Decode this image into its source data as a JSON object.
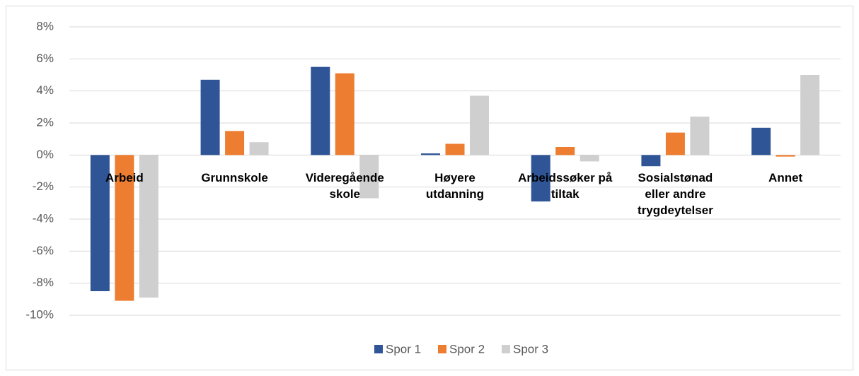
{
  "chart_data": {
    "type": "bar",
    "categories": [
      "Arbeid",
      "Grunnskole",
      "Videregående skole",
      "Høyere utdanning",
      "Arbeidssøker på tiltak",
      "Sosialstønad eller andre trygdeytelser",
      "Annet"
    ],
    "series": [
      {
        "name": "Spor 1",
        "color": "#2f5597",
        "values": [
          -8.5,
          4.7,
          5.5,
          0.1,
          -2.9,
          -0.7,
          1.7
        ]
      },
      {
        "name": "Spor 2",
        "color": "#ed7d31",
        "values": [
          -9.1,
          1.5,
          5.1,
          0.7,
          0.5,
          1.4,
          -0.1
        ]
      },
      {
        "name": "Spor 3",
        "color": "#cfcfcf",
        "values": [
          -8.9,
          0.8,
          -2.7,
          3.7,
          -0.4,
          2.4,
          5.0
        ]
      }
    ],
    "ylim": [
      -10,
      8
    ],
    "yticks": [
      {
        "value": -10,
        "label": "-10%"
      },
      {
        "value": -8,
        "label": "-8%"
      },
      {
        "value": -6,
        "label": "-6%"
      },
      {
        "value": -4,
        "label": "-4%"
      },
      {
        "value": -2,
        "label": "-2%"
      },
      {
        "value": 0,
        "label": "0%"
      },
      {
        "value": 2,
        "label": "2%"
      },
      {
        "value": 4,
        "label": "4%"
      },
      {
        "value": 6,
        "label": "6%"
      },
      {
        "value": 8,
        "label": "8%"
      }
    ],
    "grid": true,
    "legend": "bottom"
  }
}
